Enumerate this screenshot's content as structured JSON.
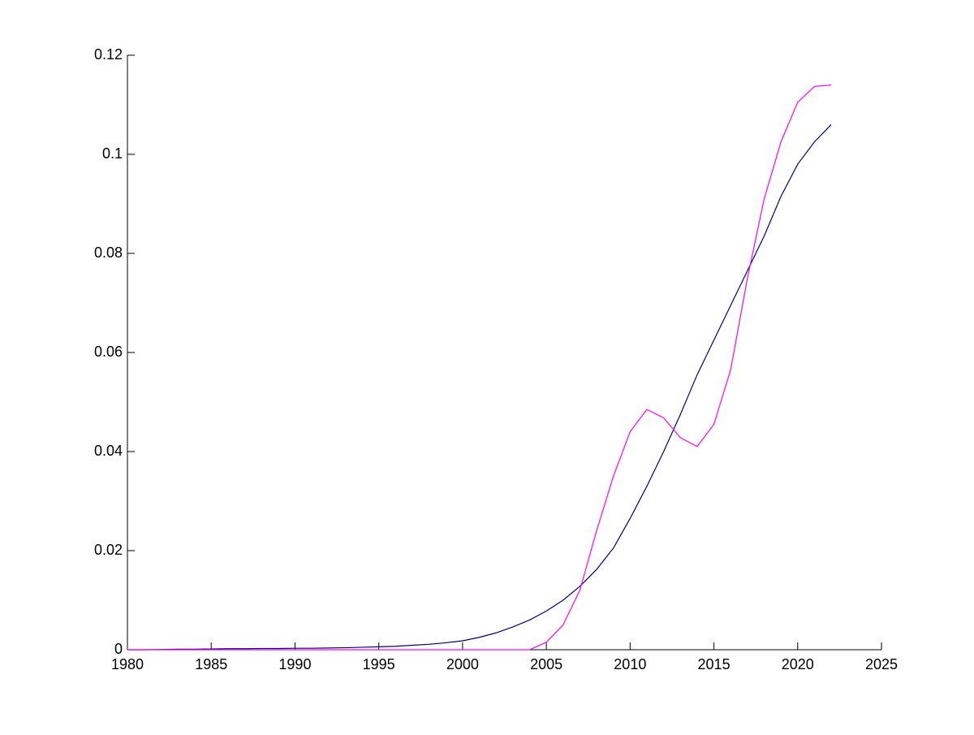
{
  "chart_data": {
    "type": "line",
    "x": [
      1980,
      1981,
      1982,
      1983,
      1984,
      1985,
      1986,
      1987,
      1988,
      1989,
      1990,
      1991,
      1992,
      1993,
      1994,
      1995,
      1996,
      1997,
      1998,
      1999,
      2000,
      2001,
      2002,
      2003,
      2004,
      2005,
      2006,
      2007,
      2008,
      2009,
      2010,
      2011,
      2012,
      2013,
      2014,
      2015,
      2016,
      2017,
      2018,
      2019,
      2020,
      2021,
      2022
    ],
    "series": [
      {
        "color": "#00007f",
        "values": [
          0,
          0,
          5e-05,
          0.0001,
          0.0001,
          0.00015,
          0.0002,
          0.0002,
          0.00025,
          0.00025,
          0.0003,
          0.0003,
          0.00035,
          0.0004,
          0.0005,
          0.0006,
          0.0007,
          0.0009,
          0.0011,
          0.0014,
          0.0018,
          0.0025,
          0.0034,
          0.0046,
          0.006,
          0.0078,
          0.01,
          0.0128,
          0.0162,
          0.0205,
          0.0265,
          0.033,
          0.04,
          0.0475,
          0.0555,
          0.0625,
          0.0695,
          0.0765,
          0.0835,
          0.0915,
          0.098,
          0.1025,
          0.106
        ]
      },
      {
        "color": "#ff00ff",
        "values": [
          0,
          0,
          0,
          0,
          0,
          0,
          0,
          0,
          0,
          0,
          0,
          0,
          0,
          0,
          0,
          0,
          0,
          0,
          0,
          0,
          0,
          0,
          0,
          0,
          0,
          0.0015,
          0.005,
          0.012,
          0.024,
          0.035,
          0.044,
          0.0485,
          0.0468,
          0.0428,
          0.041,
          0.0455,
          0.0565,
          0.075,
          0.091,
          0.1025,
          0.1105,
          0.1137,
          0.114
        ]
      }
    ],
    "xlim": [
      1980,
      2025
    ],
    "xticks": [
      1980,
      1985,
      1990,
      1995,
      2000,
      2005,
      2010,
      2015,
      2020,
      2025
    ],
    "ylim": [
      0,
      0.12
    ],
    "yticks": [
      0,
      0.02,
      0.04,
      0.06,
      0.08,
      0.1,
      0.12
    ]
  }
}
